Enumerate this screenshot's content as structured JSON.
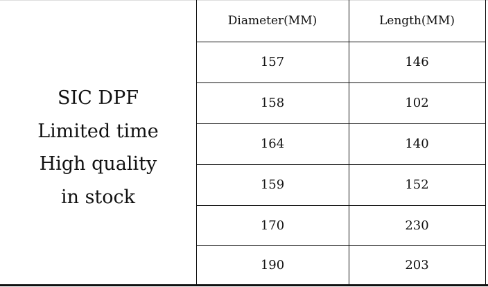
{
  "promo": {
    "lines": [
      "SIC DPF",
      "Limited time",
      "High quality",
      "in stock"
    ]
  },
  "table": {
    "headers": [
      "Diameter(MM)",
      "Length(MM)"
    ],
    "rows": [
      [
        "157",
        "146"
      ],
      [
        "158",
        "102"
      ],
      [
        "164",
        "140"
      ],
      [
        "159",
        "152"
      ],
      [
        "170",
        "230"
      ],
      [
        "190",
        "203"
      ]
    ]
  }
}
